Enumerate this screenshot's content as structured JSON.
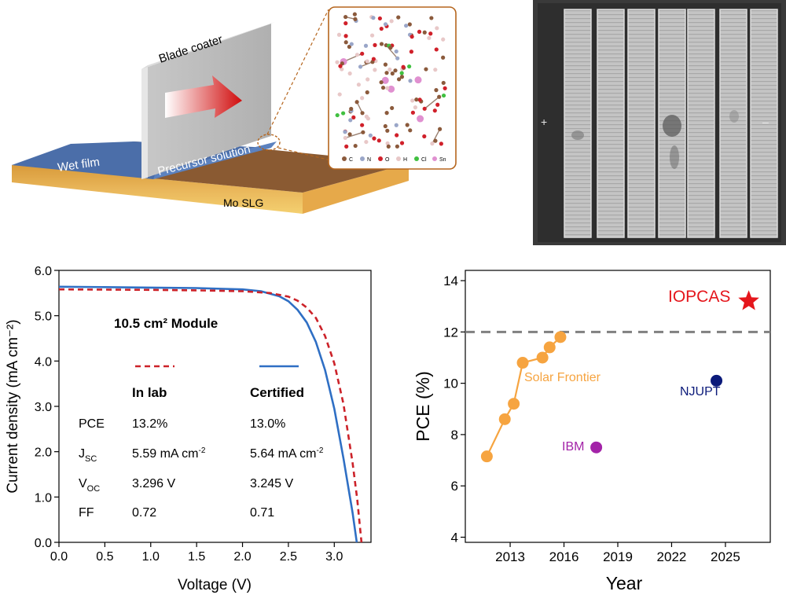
{
  "schematic": {
    "blade_label": "Blade coater",
    "wet_film_label": "Wet film",
    "precursor_label": "Precursor solution",
    "substrate_label": "Mo SLG",
    "legend_atoms": [
      {
        "symbol": "C",
        "color": "#8b5a3c"
      },
      {
        "symbol": "N",
        "color": "#9aa6c8"
      },
      {
        "symbol": "O",
        "color": "#d0202a"
      },
      {
        "symbol": "H",
        "color": "#e8c8c8"
      },
      {
        "symbol": "Cl",
        "color": "#40c040"
      },
      {
        "symbol": "Sn",
        "color": "#e090d0"
      }
    ]
  },
  "module_photo": {
    "plus_label": "+",
    "minus_label": "–"
  },
  "chart_data": [
    {
      "type": "line",
      "title": "10.5 cm² Module",
      "xlabel": "Voltage (V)",
      "ylabel": "Current density (mA cm⁻²)",
      "xlim": [
        0,
        3.4
      ],
      "ylim": [
        0,
        6.0
      ],
      "xticks": [
        "0.0",
        "0.5",
        "1.0",
        "1.5",
        "2.0",
        "2.5",
        "3.0"
      ],
      "yticks": [
        "0.0",
        "1.0",
        "2.0",
        "3.0",
        "4.0",
        "5.0",
        "6.0"
      ],
      "series": [
        {
          "name": "In lab",
          "color": "#cc2229",
          "style": "dashed",
          "x": [
            0,
            0.5,
            1.0,
            1.5,
            2.0,
            2.3,
            2.5,
            2.6,
            2.7,
            2.8,
            2.9,
            3.0,
            3.1,
            3.2,
            3.25,
            3.296
          ],
          "y": [
            5.58,
            5.575,
            5.57,
            5.56,
            5.54,
            5.5,
            5.42,
            5.33,
            5.18,
            4.95,
            4.55,
            3.95,
            3.05,
            1.75,
            0.95,
            0.0
          ]
        },
        {
          "name": "Certified",
          "color": "#2f6fc4",
          "style": "solid",
          "x": [
            0,
            0.5,
            1.0,
            1.5,
            2.0,
            2.2,
            2.4,
            2.5,
            2.6,
            2.7,
            2.8,
            2.9,
            3.0,
            3.1,
            3.2,
            3.245
          ],
          "y": [
            5.64,
            5.63,
            5.62,
            5.61,
            5.58,
            5.54,
            5.43,
            5.32,
            5.13,
            4.85,
            4.42,
            3.8,
            2.95,
            1.85,
            0.65,
            0.0
          ]
        }
      ],
      "table": {
        "col_headers": [
          "In lab",
          "Certified"
        ],
        "rows": [
          {
            "param": "PCE",
            "sub": "",
            "lab": "13.2%",
            "cert": "13.0%"
          },
          {
            "param": "J",
            "sub": "SC",
            "lab": "5.59 mA cm",
            "lab_sup": "-2",
            "cert": "5.64 mA cm",
            "cert_sup": "-2"
          },
          {
            "param": "V",
            "sub": "OC",
            "lab": "3.296 V",
            "cert": "3.245 V"
          },
          {
            "param": "FF",
            "sub": "",
            "lab": "0.72",
            "cert": "0.71"
          }
        ]
      }
    },
    {
      "type": "scatter",
      "xlabel": "Year",
      "ylabel": "PCE (%)",
      "xlim": [
        2010.5,
        2027.5
      ],
      "ylim": [
        3.8,
        14.4
      ],
      "xticks": [
        "2013",
        "2016",
        "2019",
        "2022",
        "2025"
      ],
      "yticks": [
        "4",
        "6",
        "8",
        "10",
        "12",
        "14"
      ],
      "reference_line": {
        "y": 12,
        "style": "dashed",
        "color": "#808080"
      },
      "series": [
        {
          "name": "Solar Frontier",
          "color": "#f6a440",
          "connected": true,
          "x": [
            2011.7,
            2012.7,
            2013.2,
            2013.7,
            2014.8,
            2015.2,
            2015.8
          ],
          "y": [
            7.15,
            8.6,
            9.2,
            10.8,
            11.0,
            11.4,
            11.8
          ]
        },
        {
          "name": "IBM",
          "color": "#a323a8",
          "x": [
            2017.8
          ],
          "y": [
            7.5
          ]
        },
        {
          "name": "NJUPT",
          "color": "#0b1a7a",
          "x": [
            2024.5
          ],
          "y": [
            10.1
          ]
        },
        {
          "name": "IOPCAS",
          "color": "#e5161c",
          "marker": "star",
          "x": [
            2026.3
          ],
          "y": [
            13.2
          ]
        }
      ]
    }
  ]
}
